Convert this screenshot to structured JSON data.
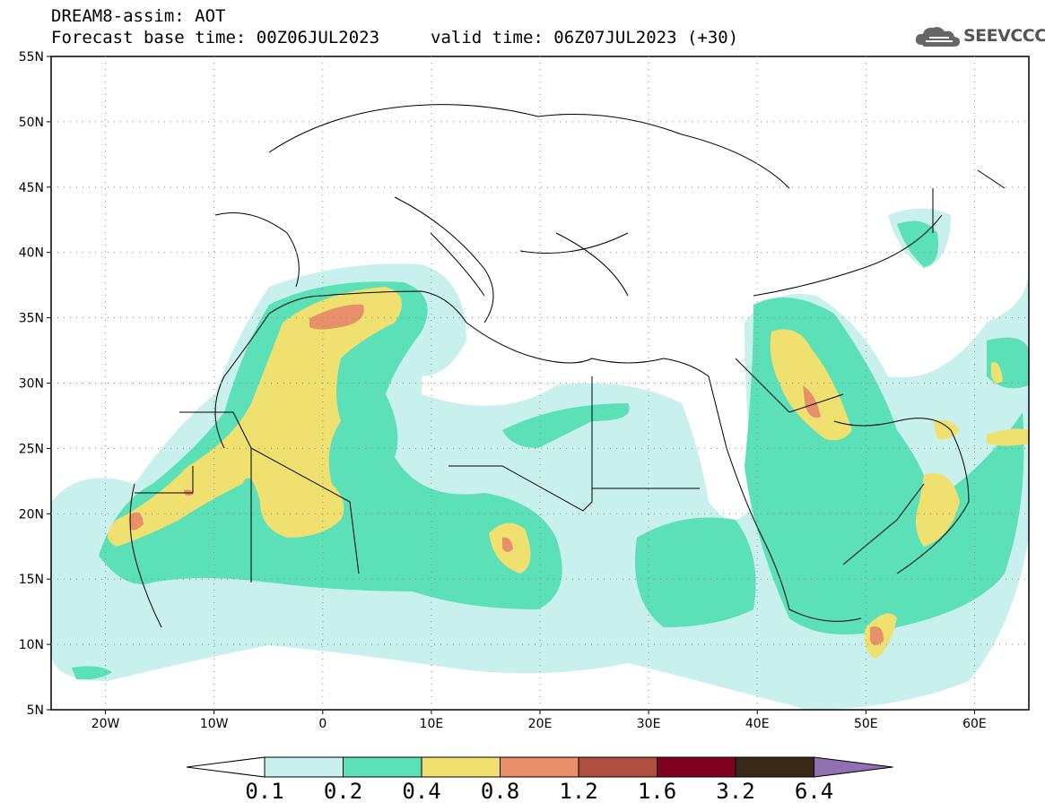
{
  "title": {
    "line1": "DREAM8-assim: AOT",
    "line2": "Forecast base time: 00Z06JUL2023",
    "valid": "valid time: 06Z07JUL2023 (+30)"
  },
  "logo": {
    "text": "SEEVCCC",
    "icon": "cloud-icon"
  },
  "map": {
    "lat_ticks": [
      "55N",
      "50N",
      "45N",
      "40N",
      "35N",
      "30N",
      "25N",
      "20N",
      "15N",
      "10N",
      "5N"
    ],
    "lon_ticks": [
      "20W",
      "10W",
      "0",
      "10E",
      "20E",
      "30E",
      "40E",
      "50E",
      "60E"
    ],
    "lat_range": [
      5,
      55
    ],
    "lon_range": [
      -25,
      65
    ]
  },
  "colorbar": {
    "levels": [
      "0.1",
      "0.2",
      "0.4",
      "0.8",
      "1.2",
      "1.6",
      "3.2",
      "6.4"
    ],
    "colors": [
      "#c8f0ec",
      "#5ce0b8",
      "#f0e070",
      "#e8906a",
      "#b05040",
      "#800020",
      "#3a2818",
      "#9070b0"
    ]
  }
}
